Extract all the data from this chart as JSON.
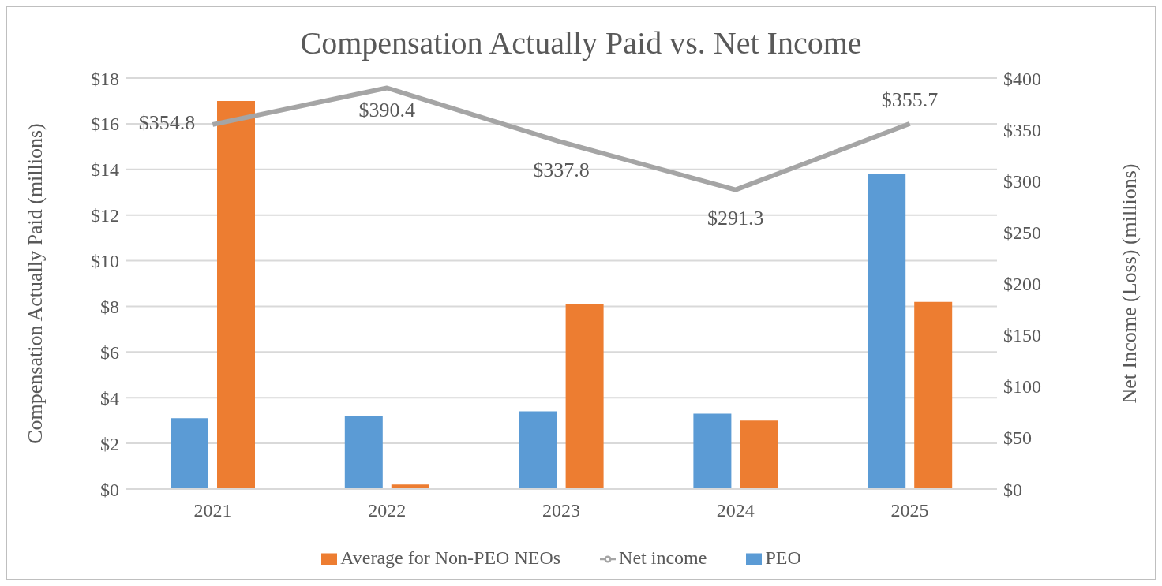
{
  "chart_data": {
    "type": "bar",
    "title": "Compensation Actually Paid vs. Net Income",
    "ylabel": "Compensation Actually Paid (millions)",
    "y2label": "Net Income (Loss) (millions)",
    "categories": [
      "2021",
      "2022",
      "2023",
      "2024",
      "2025"
    ],
    "series": [
      {
        "name": "PEO",
        "color": "#5b9bd5",
        "values": [
          3.1,
          3.2,
          3.4,
          3.3,
          13.8
        ]
      },
      {
        "name": "Average for Non-PEO NEOs",
        "color": "#ed7d31",
        "values": [
          17.0,
          0.2,
          8.1,
          3.0,
          8.2
        ]
      },
      {
        "name": "Net income",
        "type": "line",
        "axis": "y2",
        "color": "#a5a5a5",
        "values": [
          354.8,
          390.4,
          337.8,
          291.3,
          355.7
        ],
        "value_labels": [
          "$354.8",
          "$390.4",
          "$337.8",
          "$291.3",
          "$355.7"
        ]
      }
    ],
    "ylim": [
      0,
      18
    ],
    "yticks": [
      {
        "value": 0,
        "label": "$0"
      },
      {
        "value": 2,
        "label": "$2"
      },
      {
        "value": 4,
        "label": "$4"
      },
      {
        "value": 6,
        "label": "$6"
      },
      {
        "value": 8,
        "label": "$8"
      },
      {
        "value": 10,
        "label": "$10"
      },
      {
        "value": 12,
        "label": "$12"
      },
      {
        "value": 14,
        "label": "$14"
      },
      {
        "value": 16,
        "label": "$16"
      },
      {
        "value": 18,
        "label": "$18"
      }
    ],
    "y2lim": [
      0,
      400
    ],
    "y2ticks": [
      {
        "value": 0,
        "label": "$0"
      },
      {
        "value": 50,
        "label": "$50"
      },
      {
        "value": 100,
        "label": "$100"
      },
      {
        "value": 150,
        "label": "$150"
      },
      {
        "value": 200,
        "label": "$200"
      },
      {
        "value": 250,
        "label": "$250"
      },
      {
        "value": 300,
        "label": "$300"
      },
      {
        "value": 350,
        "label": "$350"
      },
      {
        "value": 400,
        "label": "$400"
      }
    ],
    "grid": "y",
    "legend": "bottom",
    "marker": "none"
  }
}
